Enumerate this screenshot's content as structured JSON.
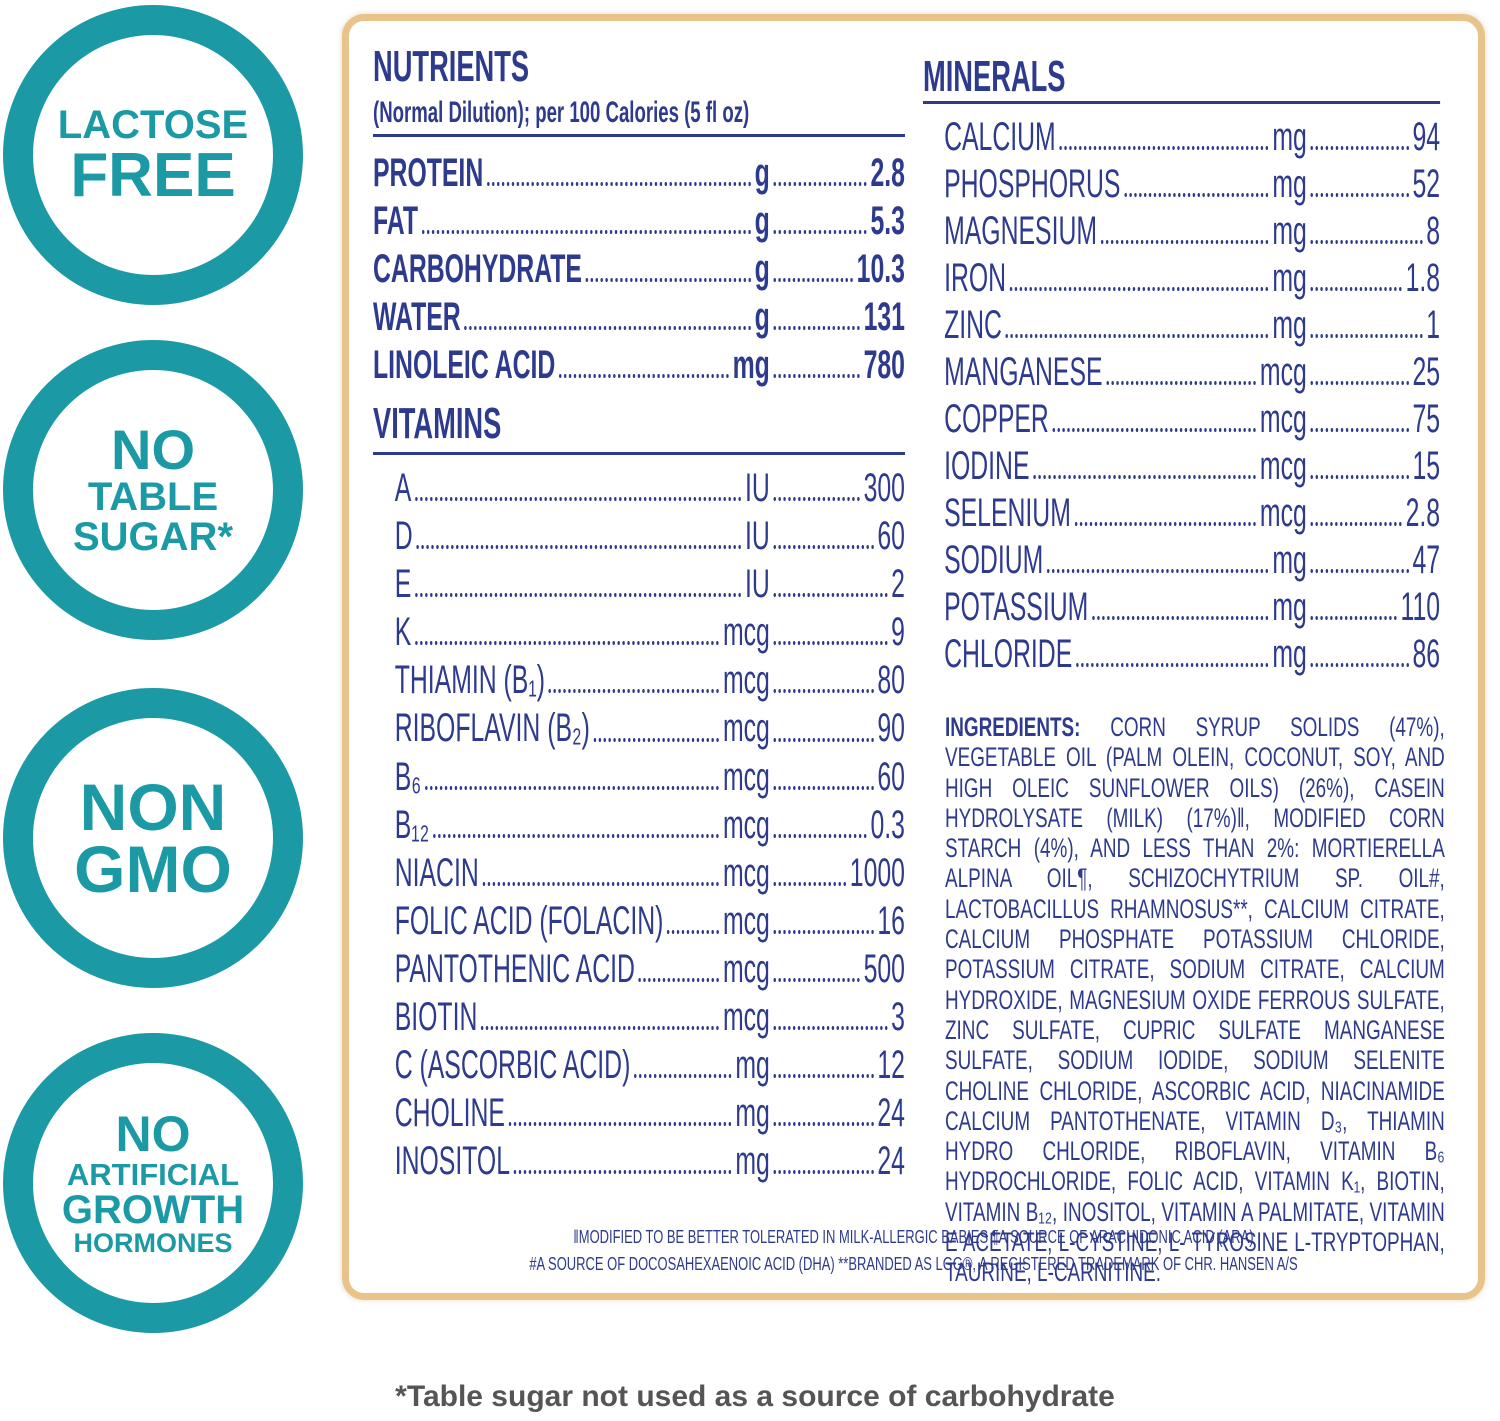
{
  "badges": [
    {
      "lines": [
        "LACTOSE",
        "FREE"
      ]
    },
    {
      "lines": [
        "NO",
        "TABLE",
        "SUGAR*"
      ]
    },
    {
      "lines": [
        "NON",
        "GMO"
      ]
    },
    {
      "lines": [
        "NO",
        "ARTIFICIAL",
        "GROWTH",
        "HORMONES"
      ]
    }
  ],
  "nutrients": {
    "title": "NUTRIENTS",
    "subtitle": "(Normal Dilution); per 100 Calories (5 fl oz)",
    "rows": [
      {
        "name": "PROTEIN",
        "unit": "g",
        "value": "2.8"
      },
      {
        "name": "FAT",
        "unit": "g",
        "value": "5.3"
      },
      {
        "name": "CARBOHYDRATE",
        "unit": "g",
        "value": "10.3"
      },
      {
        "name": "WATER",
        "unit": "g",
        "value": "131"
      },
      {
        "name": "LINOLEIC ACID",
        "unit": "mg",
        "value": "780"
      }
    ]
  },
  "vitamins": {
    "title": "VITAMINS",
    "rows": [
      {
        "name": "A",
        "unit": "IU",
        "value": "300"
      },
      {
        "name": "D",
        "unit": "IU",
        "value": "60"
      },
      {
        "name": "E",
        "unit": "IU",
        "value": "2"
      },
      {
        "name": "K",
        "unit": "mcg",
        "value": "9"
      },
      {
        "name": "THIAMIN (B₁)",
        "unit": "mcg",
        "value": "80"
      },
      {
        "name": "RIBOFLAVIN (B₂)",
        "unit": "mcg",
        "value": "90"
      },
      {
        "name": "B₆",
        "unit": "mcg",
        "value": "60"
      },
      {
        "name": "B₁₂",
        "unit": "mcg",
        "value": "0.3"
      },
      {
        "name": "NIACIN",
        "unit": "mcg",
        "value": "1000"
      },
      {
        "name": "FOLIC ACID (FOLACIN)",
        "unit": "mcg",
        "value": "16"
      },
      {
        "name": "PANTOTHENIC ACID",
        "unit": "mcg",
        "value": "500"
      },
      {
        "name": "BIOTIN",
        "unit": "mcg",
        "value": "3"
      },
      {
        "name": "C (ASCORBIC ACID)",
        "unit": "mg",
        "value": "12"
      },
      {
        "name": "CHOLINE",
        "unit": "mg",
        "value": "24"
      },
      {
        "name": "INOSITOL",
        "unit": "mg",
        "value": "24"
      }
    ]
  },
  "minerals": {
    "title": "MINERALS",
    "rows": [
      {
        "name": "CALCIUM",
        "unit": "mg",
        "value": "94"
      },
      {
        "name": "PHOSPHORUS",
        "unit": "mg",
        "value": "52"
      },
      {
        "name": "MAGNESIUM",
        "unit": "mg",
        "value": "8"
      },
      {
        "name": "IRON",
        "unit": "mg",
        "value": "1.8"
      },
      {
        "name": "ZINC",
        "unit": "mg",
        "value": "1"
      },
      {
        "name": "MANGANESE",
        "unit": "mcg",
        "value": "25"
      },
      {
        "name": "COPPER",
        "unit": "mcg",
        "value": "75"
      },
      {
        "name": "IODINE",
        "unit": "mcg",
        "value": "15"
      },
      {
        "name": "SELENIUM",
        "unit": "mcg",
        "value": "2.8"
      },
      {
        "name": "SODIUM",
        "unit": "mg",
        "value": "47"
      },
      {
        "name": "POTASSIUM",
        "unit": "mg",
        "value": "110"
      },
      {
        "name": "CHLORIDE",
        "unit": "mg",
        "value": "86"
      }
    ]
  },
  "ingredients": {
    "label": "INGREDIENTS:",
    "text": "CORN SYRUP SOLIDS (47%), VEGETABLE OIL (PALM OLEIN, COCONUT, SOY, AND HIGH OLEIC SUNFLOWER OILS) (26%), CASEIN HYDROLYSATE (MILK) (17%)ǁ, MODIFIED CORN STARCH (4%), AND LESS THAN 2%: MORTIERELLA ALPINA OIL¶, SCHIZOCHYTRIUM SP. OIL#, LACTOBACILLUS RHAMNOSUS**, CALCIUM CITRATE, CALCIUM PHOSPHATE POTASSIUM CHLORIDE, POTASSIUM CITRATE, SODIUM CITRATE, CALCIUM HYDROXIDE, MAGNESIUM OXIDE FERROUS SULFATE, ZINC SULFATE, CUPRIC SULFATE MANGANESE SULFATE, SODIUM IODIDE, SODIUM SELENITE CHOLINE CHLORIDE, ASCORBIC ACID, NIACINAMIDE CALCIUM PANTOTHENATE, VITAMIN D₃, THIAMIN HYDRO CHLORIDE, RIBOFLAVIN, VITAMIN B₆ HYDROCHLORIDE, FOLIC ACID, VITAMIN K₁, BIOTIN, VITAMIN B₁₂, INOSITOL, VITAMIN A PALMITATE, VITAMIN E ACETATE, L-CYSTINE, L- TYROSINE L-TRYPTOPHAN, TAURINE, L-CARNITINE."
  },
  "footnotes": [
    "ǁMODIFIED TO BE BETTER TOLERATED IN MILK-ALLERGIC BABIES ¶A SOURCE OF ARACHIDONIC ACID (ARA)",
    "#A SOURCE OF DOCOSAHEXAENOIC ACID (DHA) **BRANDED AS LGG®, A REGISTERED TRADEMARK OF CHR. HANSEN A/S"
  ],
  "note": "*Table sugar not used as a source of carbohydrate"
}
